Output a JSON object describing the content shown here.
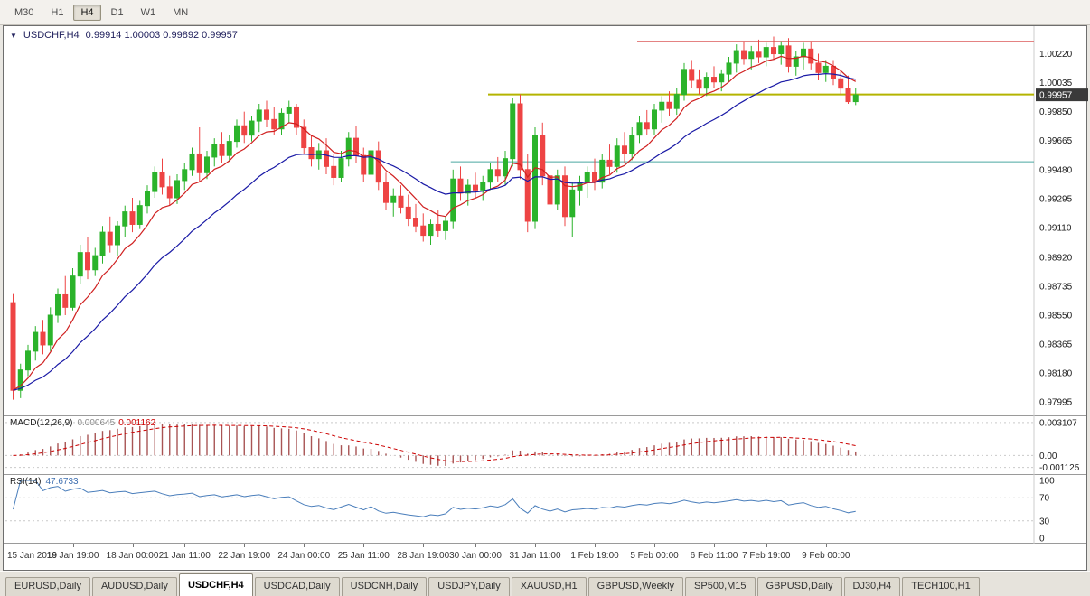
{
  "toolbar": {
    "timeframes": [
      {
        "label": "M30",
        "active": false
      },
      {
        "label": "H1",
        "active": false
      },
      {
        "label": "H4",
        "active": true
      },
      {
        "label": "D1",
        "active": false
      },
      {
        "label": "W1",
        "active": false
      },
      {
        "label": "MN",
        "active": false
      }
    ]
  },
  "chart": {
    "symbol": "USDCHF,H4",
    "ohlc": "0.99914 1.00003 0.99892 0.99957",
    "dropdown_glyph": "▼"
  },
  "current_price": "0.99957",
  "price_axis": [
    "1.00220",
    "1.00035",
    "0.99850",
    "0.99665",
    "0.99480",
    "0.99295",
    "0.99110",
    "0.98920",
    "0.98735",
    "0.98550",
    "0.98365",
    "0.98180",
    "0.97995"
  ],
  "macd": {
    "name": "MACD(12,26,9)",
    "value1": "0.000645",
    "value2": "0.001162",
    "ylim": [
      -0.0015,
      0.00335
    ],
    "ticks": [
      {
        "label": "0.003107",
        "value": 0.003107
      },
      {
        "label": "0.00",
        "value": 0
      },
      {
        "label": "-0.001125",
        "value": -0.001125
      }
    ]
  },
  "rsi": {
    "name": "RSI(14)",
    "value": "47.6733",
    "ylim": [
      0,
      100
    ],
    "levels": [
      70,
      30
    ],
    "ticks": [
      {
        "label": "100",
        "value": 100
      },
      {
        "label": "70",
        "value": 70
      },
      {
        "label": "30",
        "value": 30
      },
      {
        "label": "0",
        "value": 0
      }
    ]
  },
  "time_ticks": [
    {
      "label": "15 Jan 2019",
      "bar": 0
    },
    {
      "label": "16 Jan 19:00",
      "bar": 8
    },
    {
      "label": "18 Jan 00:00",
      "bar": 16
    },
    {
      "label": "21 Jan 11:00",
      "bar": 23
    },
    {
      "label": "22 Jan 19:00",
      "bar": 31
    },
    {
      "label": "24 Jan 00:00",
      "bar": 39
    },
    {
      "label": "25 Jan 11:00",
      "bar": 47
    },
    {
      "label": "28 Jan 19:00",
      "bar": 55
    },
    {
      "label": "30 Jan 00:00",
      "bar": 62
    },
    {
      "label": "31 Jan 11:00",
      "bar": 70
    },
    {
      "label": "1 Feb 19:00",
      "bar": 78
    },
    {
      "label": "5 Feb 00:00",
      "bar": 86
    },
    {
      "label": "6 Feb 11:00",
      "bar": 94
    },
    {
      "label": "7 Feb 19:00",
      "bar": 101
    },
    {
      "label": "9 Feb 00:00",
      "bar": 109
    }
  ],
  "tabs": [
    {
      "label": "EURUSD,Daily",
      "active": false
    },
    {
      "label": "AUDUSD,Daily",
      "active": false
    },
    {
      "label": "USDCHF,H4",
      "active": true
    },
    {
      "label": "USDCAD,Daily",
      "active": false
    },
    {
      "label": "USDCNH,Daily",
      "active": false
    },
    {
      "label": "USDJPY,Daily",
      "active": false
    },
    {
      "label": "XAUUSD,H1",
      "active": false
    },
    {
      "label": "GBPUSD,Weekly",
      "active": false
    },
    {
      "label": "SP500,M15",
      "active": false
    },
    {
      "label": "GBPUSD,Daily",
      "active": false
    },
    {
      "label": "DJ30,H4",
      "active": false
    },
    {
      "label": "TECH100,H1",
      "active": false
    }
  ],
  "chart_data": {
    "type": "candlestick",
    "symbol": "USDCHF",
    "timeframe": "H4",
    "title": "USDCHF,H4",
    "ylim": [
      0.9795,
      1.0035
    ],
    "colors": {
      "up": "#2bb32b",
      "down": "#ee4444",
      "ma_fast": "#d02020",
      "ma_slow": "#1a1aa6",
      "macd_hist": "#a85454",
      "macd_signal": "#cc0000",
      "rsi": "#4a7ebb"
    },
    "hlines": [
      {
        "value": 1.003,
        "color": "#e07070",
        "width": 1,
        "from_bar": 84
      },
      {
        "value": 0.9996,
        "color": "#b4b400",
        "width": 2,
        "from_bar": 64
      },
      {
        "value": 0.9953,
        "color": "#4aa6a0",
        "width": 1,
        "from_bar": 59
      }
    ],
    "moving_averages": [
      {
        "period": 8,
        "color": "#d02020"
      },
      {
        "period": 21,
        "color": "#1a1aa6"
      }
    ],
    "indicator_params": {
      "macd": [
        12,
        26,
        9
      ],
      "rsi": 14
    },
    "candles": [
      [
        0.9863,
        0.98685,
        0.9801,
        0.9807
      ],
      [
        0.9807,
        0.9824,
        0.9802,
        0.982
      ],
      [
        0.982,
        0.9836,
        0.9816,
        0.9832
      ],
      [
        0.9832,
        0.9848,
        0.9826,
        0.9844
      ],
      [
        0.9844,
        0.9852,
        0.983,
        0.9836
      ],
      [
        0.9836,
        0.986,
        0.9832,
        0.9855
      ],
      [
        0.9855,
        0.9872,
        0.985,
        0.9868
      ],
      [
        0.9868,
        0.988,
        0.9855,
        0.986
      ],
      [
        0.986,
        0.9885,
        0.9858,
        0.988
      ],
      [
        0.988,
        0.99,
        0.9875,
        0.9895
      ],
      [
        0.9895,
        0.9905,
        0.9878,
        0.9884
      ],
      [
        0.9884,
        0.9898,
        0.988,
        0.9893
      ],
      [
        0.9893,
        0.9912,
        0.9888,
        0.9908
      ],
      [
        0.9908,
        0.9918,
        0.9895,
        0.99
      ],
      [
        0.99,
        0.9915,
        0.9893,
        0.9912
      ],
      [
        0.9912,
        0.9925,
        0.9905,
        0.9921
      ],
      [
        0.9921,
        0.993,
        0.9908,
        0.9913
      ],
      [
        0.9913,
        0.9928,
        0.991,
        0.9925
      ],
      [
        0.9925,
        0.9938,
        0.992,
        0.9934
      ],
      [
        0.9934,
        0.995,
        0.993,
        0.9946
      ],
      [
        0.9946,
        0.9955,
        0.9932,
        0.9937
      ],
      [
        0.9937,
        0.9944,
        0.9925,
        0.993
      ],
      [
        0.993,
        0.9945,
        0.9926,
        0.9941
      ],
      [
        0.9941,
        0.9952,
        0.9935,
        0.9948
      ],
      [
        0.9948,
        0.9962,
        0.9944,
        0.9958
      ],
      [
        0.9958,
        0.9975,
        0.994,
        0.9946
      ],
      [
        0.9946,
        0.996,
        0.9942,
        0.9956
      ],
      [
        0.9956,
        0.9968,
        0.995,
        0.9964
      ],
      [
        0.9964,
        0.9972,
        0.9952,
        0.9957
      ],
      [
        0.9957,
        0.997,
        0.9953,
        0.9966
      ],
      [
        0.9966,
        0.998,
        0.9962,
        0.9976
      ],
      [
        0.9976,
        0.9985,
        0.9965,
        0.997
      ],
      [
        0.997,
        0.9982,
        0.9966,
        0.9979
      ],
      [
        0.9979,
        0.999,
        0.9972,
        0.9986
      ],
      [
        0.9986,
        0.9992,
        0.9975,
        0.998
      ],
      [
        0.998,
        0.9988,
        0.997,
        0.9974
      ],
      [
        0.9974,
        0.9987,
        0.997,
        0.9984
      ],
      [
        0.9984,
        0.9992,
        0.9978,
        0.9988
      ],
      [
        0.9988,
        0.999,
        0.997,
        0.9975
      ],
      [
        0.9975,
        0.998,
        0.9958,
        0.9962
      ],
      [
        0.9962,
        0.997,
        0.995,
        0.9955
      ],
      [
        0.9955,
        0.9965,
        0.9948,
        0.996
      ],
      [
        0.996,
        0.9968,
        0.9945,
        0.995
      ],
      [
        0.995,
        0.9958,
        0.9938,
        0.9943
      ],
      [
        0.9943,
        0.996,
        0.994,
        0.9955
      ],
      [
        0.9955,
        0.9972,
        0.995,
        0.9968
      ],
      [
        0.9968,
        0.9976,
        0.9952,
        0.9957
      ],
      [
        0.9957,
        0.9962,
        0.994,
        0.9945
      ],
      [
        0.9945,
        0.9965,
        0.994,
        0.996
      ],
      [
        0.996,
        0.9966,
        0.9935,
        0.994
      ],
      [
        0.994,
        0.9946,
        0.9922,
        0.9927
      ],
      [
        0.9927,
        0.9936,
        0.9918,
        0.9931
      ],
      [
        0.9931,
        0.9938,
        0.992,
        0.9924
      ],
      [
        0.9924,
        0.9932,
        0.9912,
        0.9917
      ],
      [
        0.9917,
        0.9926,
        0.9908,
        0.9912
      ],
      [
        0.9912,
        0.992,
        0.9902,
        0.9906
      ],
      [
        0.9906,
        0.9916,
        0.99,
        0.9913
      ],
      [
        0.9913,
        0.9922,
        0.9905,
        0.9909
      ],
      [
        0.9909,
        0.9918,
        0.9903,
        0.9915
      ],
      [
        0.9915,
        0.9948,
        0.991,
        0.9942
      ],
      [
        0.9942,
        0.995,
        0.9928,
        0.9933
      ],
      [
        0.9933,
        0.9942,
        0.9925,
        0.9938
      ],
      [
        0.9938,
        0.9946,
        0.993,
        0.9935
      ],
      [
        0.9935,
        0.9944,
        0.9928,
        0.994
      ],
      [
        0.994,
        0.9952,
        0.9935,
        0.9948
      ],
      [
        0.9948,
        0.9956,
        0.994,
        0.9944
      ],
      [
        0.9944,
        0.996,
        0.9938,
        0.9955
      ],
      [
        0.9955,
        0.9994,
        0.995,
        0.999
      ],
      [
        0.999,
        0.9996,
        0.9942,
        0.9948
      ],
      [
        0.9948,
        0.9958,
        0.9908,
        0.9915
      ],
      [
        0.9915,
        0.9975,
        0.991,
        0.997
      ],
      [
        0.997,
        0.9978,
        0.9938,
        0.9944
      ],
      [
        0.9944,
        0.9952,
        0.992,
        0.9926
      ],
      [
        0.9926,
        0.9948,
        0.9922,
        0.9944
      ],
      [
        0.9944,
        0.995,
        0.9912,
        0.9918
      ],
      [
        0.9918,
        0.994,
        0.9905,
        0.9935
      ],
      [
        0.9935,
        0.9944,
        0.9925,
        0.994
      ],
      [
        0.994,
        0.995,
        0.993,
        0.9946
      ],
      [
        0.9946,
        0.9955,
        0.9935,
        0.994
      ],
      [
        0.994,
        0.9958,
        0.9936,
        0.9954
      ],
      [
        0.9954,
        0.9964,
        0.9945,
        0.995
      ],
      [
        0.995,
        0.9968,
        0.9946,
        0.9963
      ],
      [
        0.9963,
        0.9972,
        0.9952,
        0.9958
      ],
      [
        0.9958,
        0.9975,
        0.9954,
        0.997
      ],
      [
        0.997,
        0.9982,
        0.9965,
        0.9978
      ],
      [
        0.9978,
        0.9986,
        0.997,
        0.9974
      ],
      [
        0.9974,
        0.999,
        0.997,
        0.9986
      ],
      [
        0.9986,
        0.9995,
        0.9978,
        0.9991
      ],
      [
        0.9991,
        0.9998,
        0.9982,
        0.9987
      ],
      [
        0.9987,
        1.0,
        0.9983,
        0.9996
      ],
      [
        0.9996,
        1.0016,
        0.9992,
        1.0012
      ],
      [
        1.0012,
        1.0018,
        1.0,
        1.0005
      ],
      [
        1.0005,
        1.0012,
        0.9996,
        1.0
      ],
      [
        1.0,
        1.001,
        0.9995,
        1.0007
      ],
      [
        1.0007,
        1.0014,
        1.0,
        1.0004
      ],
      [
        1.0004,
        1.0012,
        0.9998,
        1.0009
      ],
      [
        1.0009,
        1.002,
        1.0004,
        1.0016
      ],
      [
        1.0016,
        1.0028,
        1.001,
        1.0024
      ],
      [
        1.0024,
        1.003,
        1.0015,
        1.0019
      ],
      [
        1.0019,
        1.0027,
        1.0012,
        1.0023
      ],
      [
        1.0023,
        1.0031,
        1.0016,
        1.002
      ],
      [
        1.002,
        1.0029,
        1.0014,
        1.0026
      ],
      [
        1.0026,
        1.0033,
        1.0018,
        1.0022
      ],
      [
        1.0022,
        1.003,
        1.0015,
        1.0027
      ],
      [
        1.0027,
        1.0032,
        1.001,
        1.0014
      ],
      [
        1.0014,
        1.0024,
        1.0008,
        1.002
      ],
      [
        1.002,
        1.0029,
        1.0012,
        1.0025
      ],
      [
        1.0025,
        1.003,
        1.0012,
        1.0016
      ],
      [
        1.0016,
        1.0022,
        1.0005,
        1.001
      ],
      [
        1.001,
        1.0018,
        1.0004,
        1.0014
      ],
      [
        1.0014,
        1.0018,
        1.0002,
        1.0006
      ],
      [
        1.0006,
        1.0012,
        0.9996,
        1.0
      ],
      [
        1.0,
        1.0008,
        0.999,
        0.99914
      ],
      [
        0.99914,
        1.00003,
        0.99892,
        0.99957
      ]
    ]
  }
}
